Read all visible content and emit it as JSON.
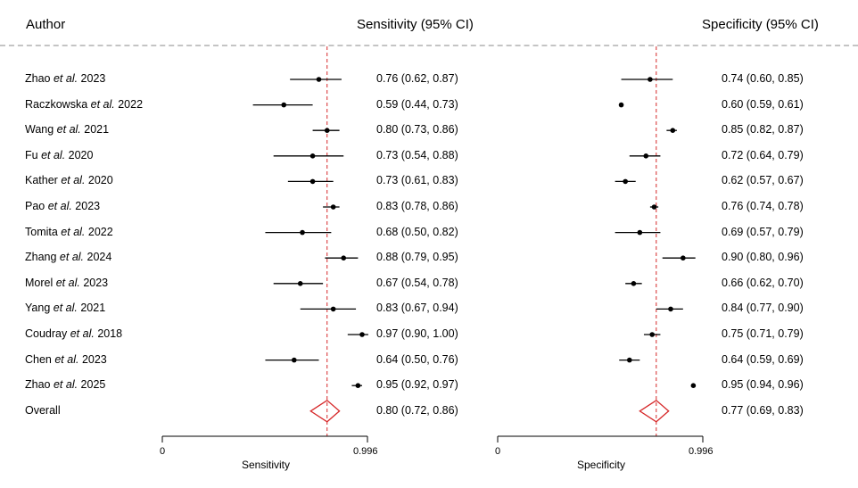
{
  "headers": {
    "author": "Author",
    "sensitivity": "Sensitivity (95% CI)",
    "specificity": "Specificity (95% CI)"
  },
  "chart_data": {
    "type": "forest",
    "rows": [
      {
        "author_pre": "Zhao",
        "etal": "et al.",
        "year": "2023",
        "sens": {
          "est": 0.76,
          "lo": 0.62,
          "hi": 0.87,
          "text": "0.76 (0.62, 0.87)"
        },
        "spec": {
          "est": 0.74,
          "lo": 0.6,
          "hi": 0.85,
          "text": "0.74 (0.60, 0.85)"
        }
      },
      {
        "author_pre": "Raczkowska",
        "etal": "et al.",
        "year": "2022",
        "sens": {
          "est": 0.59,
          "lo": 0.44,
          "hi": 0.73,
          "text": "0.59 (0.44, 0.73)"
        },
        "spec": {
          "est": 0.6,
          "lo": 0.59,
          "hi": 0.61,
          "text": "0.60 (0.59, 0.61)"
        }
      },
      {
        "author_pre": "Wang",
        "etal": "et al.",
        "year": "2021",
        "sens": {
          "est": 0.8,
          "lo": 0.73,
          "hi": 0.86,
          "text": "0.80 (0.73, 0.86)"
        },
        "spec": {
          "est": 0.85,
          "lo": 0.82,
          "hi": 0.87,
          "text": "0.85 (0.82, 0.87)"
        }
      },
      {
        "author_pre": "Fu",
        "etal": "et al.",
        "year": "2020",
        "sens": {
          "est": 0.73,
          "lo": 0.54,
          "hi": 0.88,
          "text": "0.73 (0.54, 0.88)"
        },
        "spec": {
          "est": 0.72,
          "lo": 0.64,
          "hi": 0.79,
          "text": "0.72 (0.64, 0.79)"
        }
      },
      {
        "author_pre": "Kather",
        "etal": "et al.",
        "year": "2020",
        "sens": {
          "est": 0.73,
          "lo": 0.61,
          "hi": 0.83,
          "text": "0.73 (0.61, 0.83)"
        },
        "spec": {
          "est": 0.62,
          "lo": 0.57,
          "hi": 0.67,
          "text": "0.62 (0.57, 0.67)"
        }
      },
      {
        "author_pre": "Pao",
        "etal": "et al.",
        "year": "2023",
        "sens": {
          "est": 0.83,
          "lo": 0.78,
          "hi": 0.86,
          "text": "0.83 (0.78, 0.86)"
        },
        "spec": {
          "est": 0.76,
          "lo": 0.74,
          "hi": 0.78,
          "text": "0.76 (0.74, 0.78)"
        }
      },
      {
        "author_pre": "Tomita",
        "etal": "et al.",
        "year": "2022",
        "sens": {
          "est": 0.68,
          "lo": 0.5,
          "hi": 0.82,
          "text": "0.68 (0.50, 0.82)"
        },
        "spec": {
          "est": 0.69,
          "lo": 0.57,
          "hi": 0.79,
          "text": "0.69 (0.57, 0.79)"
        }
      },
      {
        "author_pre": "Zhang",
        "etal": "et al.",
        "year": "2024",
        "sens": {
          "est": 0.88,
          "lo": 0.79,
          "hi": 0.95,
          "text": "0.88 (0.79, 0.95)"
        },
        "spec": {
          "est": 0.9,
          "lo": 0.8,
          "hi": 0.96,
          "text": "0.90 (0.80, 0.96)"
        }
      },
      {
        "author_pre": "Morel",
        "etal": "et al.",
        "year": "2023",
        "sens": {
          "est": 0.67,
          "lo": 0.54,
          "hi": 0.78,
          "text": "0.67 (0.54, 0.78)"
        },
        "spec": {
          "est": 0.66,
          "lo": 0.62,
          "hi": 0.7,
          "text": "0.66 (0.62, 0.70)"
        }
      },
      {
        "author_pre": "Yang",
        "etal": "et al.",
        "year": "2021",
        "sens": {
          "est": 0.83,
          "lo": 0.67,
          "hi": 0.94,
          "text": "0.83 (0.67, 0.94)"
        },
        "spec": {
          "est": 0.84,
          "lo": 0.77,
          "hi": 0.9,
          "text": "0.84 (0.77, 0.90)"
        }
      },
      {
        "author_pre": "Coudray",
        "etal": "et al.",
        "year": "2018",
        "sens": {
          "est": 0.97,
          "lo": 0.9,
          "hi": 1.0,
          "text": "0.97 (0.90, 1.00)"
        },
        "spec": {
          "est": 0.75,
          "lo": 0.71,
          "hi": 0.79,
          "text": "0.75 (0.71, 0.79)"
        }
      },
      {
        "author_pre": "Chen",
        "etal": "et al.",
        "year": "2023",
        "sens": {
          "est": 0.64,
          "lo": 0.5,
          "hi": 0.76,
          "text": "0.64 (0.50, 0.76)"
        },
        "spec": {
          "est": 0.64,
          "lo": 0.59,
          "hi": 0.69,
          "text": "0.64 (0.59, 0.69)"
        }
      },
      {
        "author_pre": "Zhao",
        "etal": "et al.",
        "year": "2025",
        "sens": {
          "est": 0.95,
          "lo": 0.92,
          "hi": 0.97,
          "text": "0.95 (0.92, 0.97)"
        },
        "spec": {
          "est": 0.95,
          "lo": 0.94,
          "hi": 0.96,
          "text": "0.95 (0.94, 0.96)"
        }
      }
    ],
    "overall": {
      "label": "Overall",
      "sens": {
        "est": 0.8,
        "lo": 0.72,
        "hi": 0.86,
        "text": "0.80 (0.72, 0.86)"
      },
      "spec": {
        "est": 0.77,
        "lo": 0.69,
        "hi": 0.83,
        "text": "0.77 (0.69, 0.83)"
      }
    },
    "panels": [
      {
        "key": "sens",
        "xlabel": "Sensitivity",
        "xlim": [
          0.0,
          0.996
        ],
        "ticks": [
          "0",
          "0.996"
        ]
      },
      {
        "key": "spec",
        "xlabel": "Specificity",
        "xlim": [
          0.0,
          0.996
        ],
        "ticks": [
          "0",
          "0.996"
        ]
      }
    ],
    "colors": {
      "ref_line": "#d62728",
      "diamond": "#d62728",
      "marker": "#000000",
      "separator": "#c4c4c4"
    }
  }
}
